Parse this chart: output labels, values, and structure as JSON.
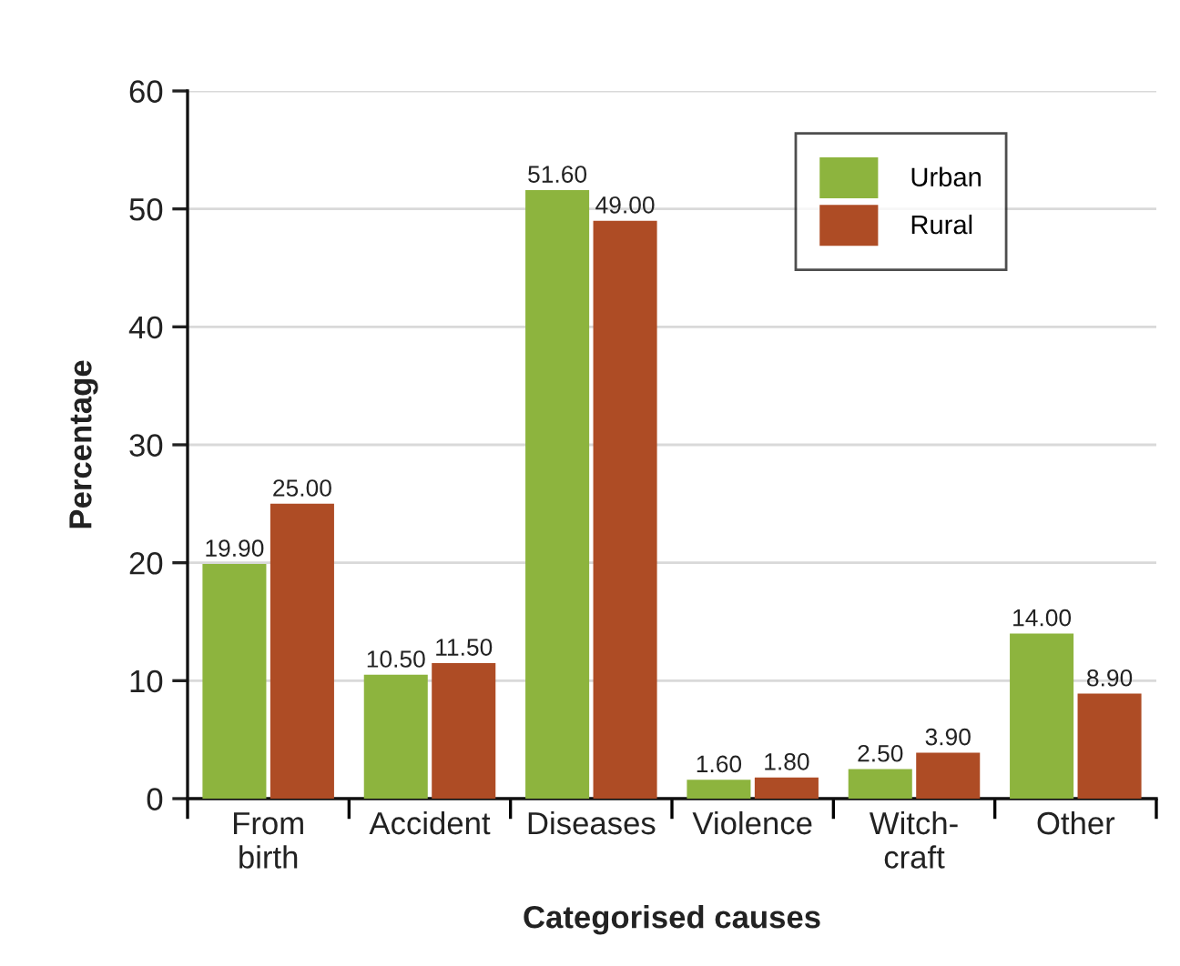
{
  "chart_data": {
    "type": "bar",
    "xlabel": "Categorised causes",
    "ylabel": "Percentage",
    "categories": [
      "From\nbirth",
      "Accident",
      "Diseases",
      "Violence",
      "Witch-\ncraft",
      "Other"
    ],
    "series": [
      {
        "name": "Urban",
        "color": "#8db43e",
        "values": [
          19.9,
          10.5,
          51.6,
          1.6,
          2.5,
          14.0
        ],
        "value_labels": [
          "19.90",
          "10.50",
          "51.60",
          "1.60",
          "2.50",
          "14.00"
        ]
      },
      {
        "name": "Rural",
        "color": "#ae4c25",
        "values": [
          25.0,
          11.5,
          49.0,
          1.8,
          3.9,
          8.9
        ],
        "value_labels": [
          "25.00",
          "11.50",
          "49.00",
          "1.80",
          "3.90",
          "8.90"
        ]
      }
    ],
    "ylim": [
      0,
      60
    ],
    "yticks": [
      0,
      10,
      20,
      30,
      40,
      50,
      60
    ],
    "grid": "y",
    "legend": "top right"
  }
}
